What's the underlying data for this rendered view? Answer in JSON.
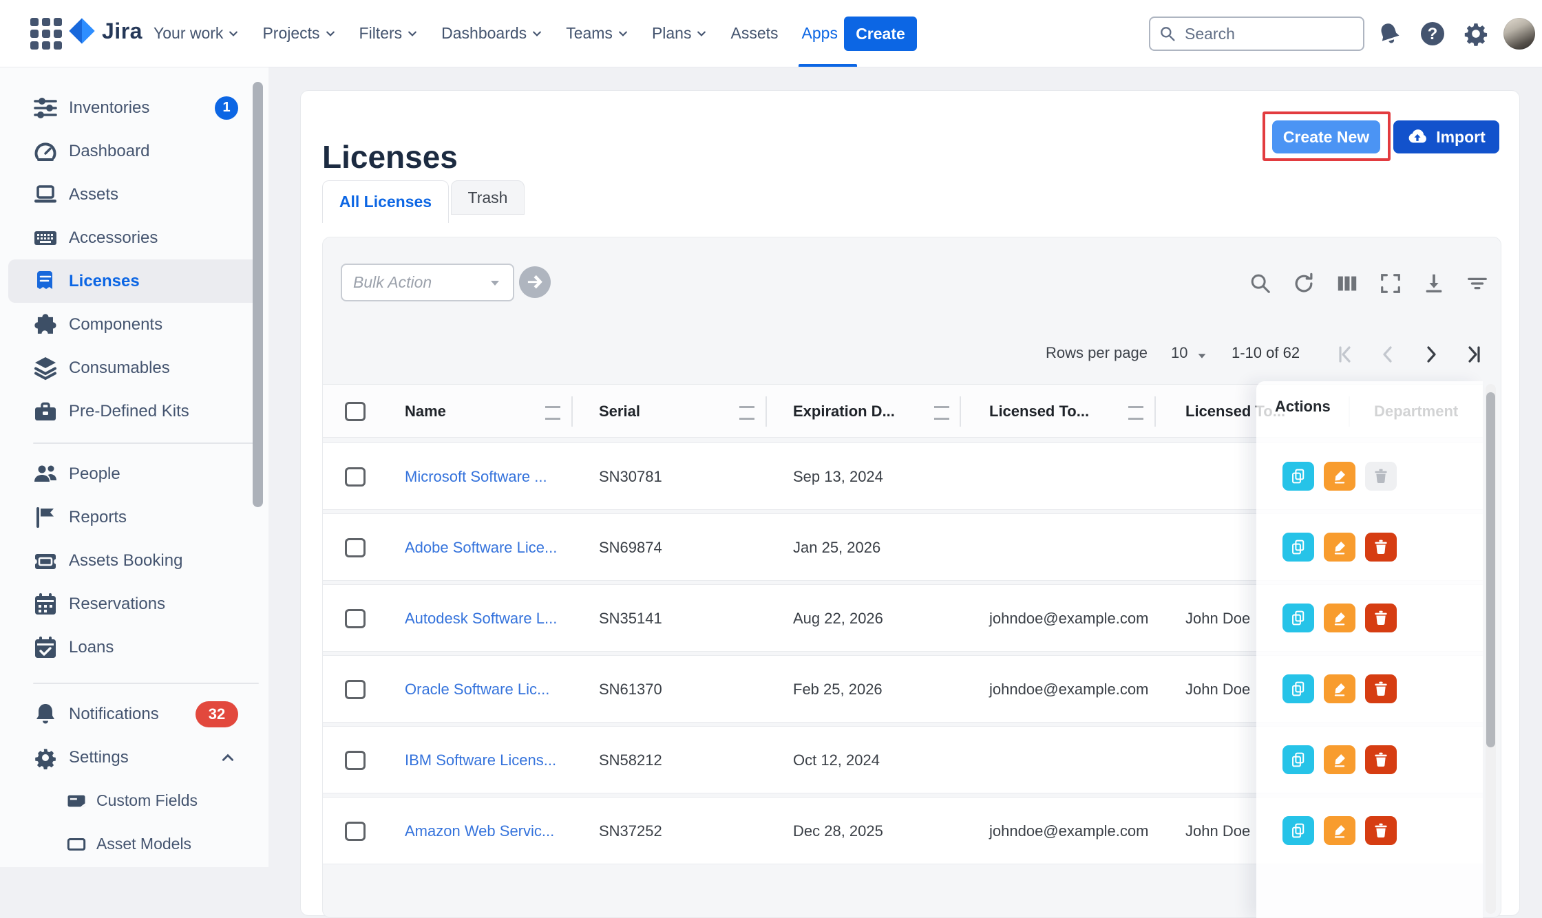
{
  "navbar": {
    "brand": "Jira",
    "items": [
      {
        "label": "Your work",
        "caret": true
      },
      {
        "label": "Projects",
        "caret": true
      },
      {
        "label": "Filters",
        "caret": true
      },
      {
        "label": "Dashboards",
        "caret": true
      },
      {
        "label": "Teams",
        "caret": true
      },
      {
        "label": "Plans",
        "caret": true
      },
      {
        "label": "Assets",
        "caret": false
      },
      {
        "label": "Apps",
        "caret": true,
        "active": true
      }
    ],
    "create_label": "Create",
    "search_placeholder": "Search",
    "right_icons": [
      "bell-icon",
      "help-icon",
      "gear-icon"
    ]
  },
  "sidebar": {
    "items": [
      {
        "label": "Inventories",
        "icon": "sliders-icon",
        "badge": "1",
        "badge_style": "blue"
      },
      {
        "label": "Dashboard",
        "icon": "gauge-icon"
      },
      {
        "label": "Assets",
        "icon": "laptop-icon"
      },
      {
        "label": "Accessories",
        "icon": "keyboard-icon"
      },
      {
        "label": "Licenses",
        "icon": "license-icon",
        "selected": true
      },
      {
        "label": "Components",
        "icon": "puzzle-icon"
      },
      {
        "label": "Consumables",
        "icon": "layers-icon"
      },
      {
        "label": "Pre-Defined Kits",
        "icon": "toolbox-icon"
      },
      {
        "divider": true
      },
      {
        "label": "People",
        "icon": "people-icon"
      },
      {
        "label": "Reports",
        "icon": "flag-icon"
      },
      {
        "label": "Assets Booking",
        "icon": "ticket-icon"
      },
      {
        "label": "Reservations",
        "icon": "calendar-icon"
      },
      {
        "label": "Loans",
        "icon": "calendar-check-icon"
      },
      {
        "divider": true,
        "second": true
      },
      {
        "label": "Notifications",
        "icon": "bell-icon",
        "badge": "32",
        "badge_style": "red"
      },
      {
        "label": "Settings",
        "icon": "gear-icon",
        "chevron": "up"
      },
      {
        "label": "Custom Fields",
        "icon": "card-icon",
        "sub": true
      },
      {
        "label": "Asset Models",
        "icon": "rect-icon",
        "sub": true
      }
    ]
  },
  "page": {
    "title": "Licenses",
    "create_new_label": "Create New",
    "import_label": "Import",
    "tabs": [
      {
        "label": "All Licenses",
        "active": true
      },
      {
        "label": "Trash",
        "active": false
      }
    ]
  },
  "toolbar": {
    "bulk_action_placeholder": "Bulk Action",
    "icons": [
      "search-icon",
      "refresh-icon",
      "columns-icon",
      "fullscreen-icon",
      "download-icon",
      "filter-icon"
    ]
  },
  "pagination": {
    "rows_per_page_label": "Rows per page",
    "rows_per_page_value": "10",
    "range_label": "1-10 of 62",
    "buttons": [
      {
        "name": "first-page",
        "disabled": true
      },
      {
        "name": "prev-page",
        "disabled": true
      },
      {
        "name": "next-page",
        "disabled": false
      },
      {
        "name": "last-page",
        "disabled": false
      }
    ]
  },
  "table": {
    "headers": {
      "name": "Name",
      "serial": "Serial",
      "expiration": "Expiration D...",
      "licensed_to": "Licensed To...",
      "licensed_to_name": "Licensed To...",
      "actions": "Actions",
      "department": "Department"
    },
    "rows": [
      {
        "name": "Microsoft Software ...",
        "serial": "SN30781",
        "expiration": "Sep 13, 2024",
        "licensed_to": "",
        "licensed_name": "",
        "delete_disabled": true
      },
      {
        "name": "Adobe Software Lice...",
        "serial": "SN69874",
        "expiration": "Jan 25, 2026",
        "licensed_to": "",
        "licensed_name": "",
        "delete_disabled": false
      },
      {
        "name": "Autodesk Software L...",
        "serial": "SN35141",
        "expiration": "Aug 22, 2026",
        "licensed_to": "johndoe@example.com",
        "licensed_name": "John Doe",
        "delete_disabled": false
      },
      {
        "name": "Oracle Software Lic...",
        "serial": "SN61370",
        "expiration": "Feb 25, 2026",
        "licensed_to": "johndoe@example.com",
        "licensed_name": "John Doe",
        "delete_disabled": false
      },
      {
        "name": "IBM Software Licens...",
        "serial": "SN58212",
        "expiration": "Oct 12, 2024",
        "licensed_to": "",
        "licensed_name": "",
        "delete_disabled": false
      },
      {
        "name": "Amazon Web Servic...",
        "serial": "SN37252",
        "expiration": "Dec 28, 2025",
        "licensed_to": "johndoe@example.com",
        "licensed_name": "John Doe",
        "delete_disabled": false
      }
    ],
    "row_actions": [
      "copy",
      "edit",
      "delete"
    ]
  },
  "colors": {
    "accent_blue": "#0C66E4",
    "create_new_blue": "#4B94F4",
    "import_blue": "#1252CC",
    "annotation_red": "#E23B3F",
    "action_copy": "#26C3E8",
    "action_edit": "#F89C2E",
    "action_delete": "#D63D12",
    "badge_red": "#E2483D"
  }
}
